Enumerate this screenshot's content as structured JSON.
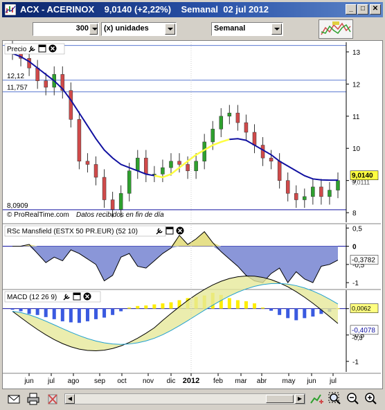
{
  "window": {
    "title": "ACX - ACERINOX    9,0140 (+2,22%)    Semanal  02 jul 2012",
    "minimize_glyph": "_",
    "maximize_glyph": "□",
    "close_glyph": "✕"
  },
  "toolbar": {
    "units_value": "300",
    "units_label": "(x) unidades",
    "period_label": "Semanal"
  },
  "price_panel": {
    "title": "Precio",
    "y_ticks": [
      "13",
      "12",
      "11",
      "10",
      "9",
      "8"
    ],
    "level_labels": [
      "12,12",
      "11,757",
      "8,0909"
    ],
    "last_price": "9,0140",
    "ma_value": "9,0111",
    "watermark": "© ProRealTime.com",
    "watermark_note": "Datos recibidos en fin de día"
  },
  "rsc_panel": {
    "title": "RSc Mansfield (ESTX 50 PR.EUR) (52 10)",
    "y_ticks": [
      "0,5",
      "0",
      "-0,5",
      "-1"
    ],
    "value_label": "-0,3782"
  },
  "macd_panel": {
    "title": "MACD (12 26 9)",
    "y_ticks": [
      "0",
      "-0,5",
      "-1"
    ],
    "value_label_hist": "0,0062",
    "value_label_line": "-0,4078",
    "value_label_signal": "-0,3"
  },
  "x_axis": {
    "labels": [
      "jun",
      "jul",
      "ago",
      "sep",
      "oct",
      "nov",
      "dic",
      "2012",
      "feb",
      "mar",
      "abr",
      "may",
      "jun",
      "jul"
    ]
  },
  "colors": {
    "up_candle": "#2ea02e",
    "down_candle": "#d04a4a",
    "ma_line": "#1010a0",
    "ma_highlight": "#ffff40",
    "rsc_fill": "#8a96d8",
    "rsc_positive": "#e6e08a",
    "macd_hist_pos": "#ffee00",
    "macd_hist_neg": "#3a5ae0"
  },
  "chart_data": [
    {
      "type": "line",
      "title": "Precio",
      "series": [
        {
          "values": [
            13.0,
            12.8,
            12.5,
            12.1,
            11.9,
            12.3,
            11.8,
            10.9,
            9.6,
            9.5,
            9.1,
            8.4,
            8.1,
            8.6,
            9.3,
            9.7,
            9.2,
            9.2,
            9.4,
            9.6,
            9.5,
            9.3,
            9.6,
            10.2,
            10.6,
            11.0,
            11.1,
            10.8,
            10.5,
            10.1,
            9.7,
            9.6,
            9.0,
            8.6,
            8.4,
            8.5,
            8.8,
            8.5,
            8.7,
            9.0
          ]
        },
        {
          "values": [
            12.95,
            12.85,
            12.7,
            12.5,
            12.3,
            12.1,
            11.85,
            11.5,
            11.1,
            10.7,
            10.3,
            9.95,
            9.7,
            9.5,
            9.4,
            9.3,
            9.2,
            9.15,
            9.1,
            9.2,
            9.4,
            9.6,
            9.8,
            9.95,
            10.1,
            10.2,
            10.28,
            10.3,
            10.25,
            10.1,
            9.95,
            9.8,
            9.6,
            9.45,
            9.3,
            9.15,
            9.05,
            9.02,
            9.01,
            9.01
          ]
        }
      ],
      "ylim": [
        7.7,
        13.3
      ]
    },
    {
      "type": "area",
      "title": "RSc Mansfield (ESTX 50 PR.EUR) (52 10)",
      "values": [
        0.0,
        0.0,
        0.05,
        -0.2,
        -0.45,
        -0.3,
        -0.4,
        -0.1,
        -0.2,
        -0.35,
        -0.5,
        -0.95,
        -0.8,
        -0.3,
        -0.2,
        -0.55,
        -0.6,
        -0.4,
        -0.2,
        -0.05,
        0.3,
        0.05,
        0.2,
        0.4,
        0.1,
        -0.15,
        -0.35,
        -0.55,
        -0.8,
        -0.95,
        -1.0,
        -0.75,
        -0.6,
        -1.0,
        -0.7,
        -0.9,
        -1.0,
        -0.55,
        -0.5,
        -0.38
      ],
      "ylim": [
        -1.15,
        0.6
      ]
    },
    {
      "type": "bar",
      "title": "MACD (12 26 9)",
      "values": [
        -0.02,
        -0.05,
        -0.1,
        -0.12,
        -0.16,
        -0.2,
        -0.24,
        -0.26,
        -0.27,
        -0.24,
        -0.2,
        -0.17,
        -0.12,
        -0.05,
        0.02,
        0.05,
        0.06,
        0.08,
        0.1,
        0.12,
        0.16,
        0.2,
        0.22,
        0.25,
        0.3,
        0.26,
        0.2,
        0.16,
        0.14,
        0.1,
        0.02,
        -0.04,
        -0.12,
        -0.18,
        -0.22,
        -0.18,
        -0.15,
        -0.1,
        -0.06,
        0.006
      ],
      "ylim": [
        -1.2,
        0.35
      ]
    }
  ]
}
